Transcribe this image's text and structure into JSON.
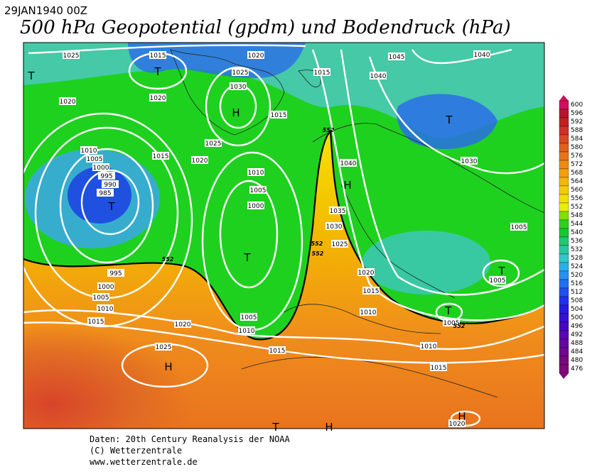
{
  "header": {
    "date": "29JAN1940 00Z",
    "title": "500 hPa Geopotential (gpdm) und Bodendruck (hPa)"
  },
  "isobar_labels": [
    1025,
    1015,
    1020,
    1045,
    1040,
    1025,
    1015,
    1040,
    1030,
    1020,
    1020,
    1015,
    1025,
    1010,
    1015,
    1020,
    1005,
    1000,
    995,
    990,
    985,
    1010,
    1040,
    1030,
    1005,
    1000,
    1035,
    1030,
    1005,
    1025,
    995,
    1000,
    1005,
    1010,
    1015,
    1020,
    1015,
    1005,
    1010,
    1005,
    1010,
    1020,
    1025,
    1015,
    1010,
    1005,
    1015,
    1020
  ],
  "center_labels": [
    "T",
    "T",
    "H",
    "T",
    "T",
    "H",
    "T",
    "T",
    "T",
    "H",
    "T",
    "H",
    "H"
  ],
  "contour_labels": [
    552,
    552,
    552,
    552,
    552
  ],
  "colorbar": {
    "levels": [
      600,
      596,
      592,
      588,
      584,
      580,
      576,
      572,
      568,
      564,
      560,
      556,
      552,
      548,
      544,
      540,
      536,
      532,
      528,
      524,
      520,
      516,
      512,
      508,
      504,
      500,
      496,
      492,
      488,
      484,
      480,
      476
    ]
  },
  "footer": {
    "source": "Daten: 20th Century Reanalysis der NOAA",
    "copyright": "(C) Wetterzentrale",
    "url": "www.wetterzentrale.de"
  }
}
